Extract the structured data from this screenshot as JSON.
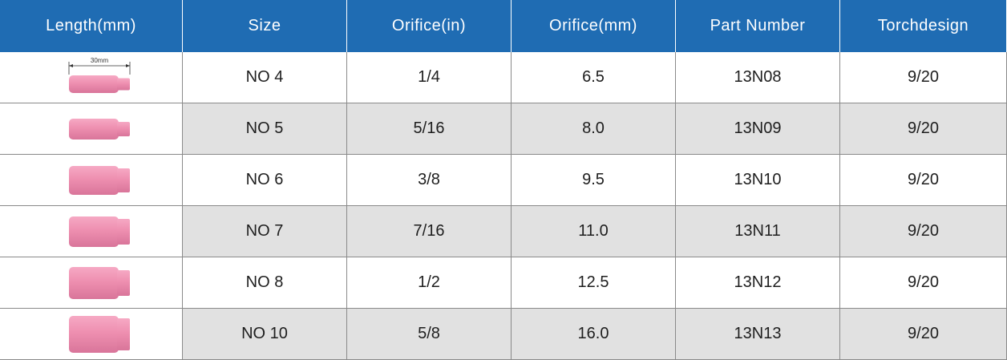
{
  "table": {
    "header": [
      "Length(mm)",
      "Size",
      "Orifice(in)",
      "Orifice(mm)",
      "Part Number",
      "Torchdesign"
    ],
    "dimension_label": "30mm",
    "rows": [
      [
        "NO 4",
        "1/4",
        "6.5",
        "13N08",
        "9/20"
      ],
      [
        "NO 5",
        "5/16",
        "8.0",
        "13N09",
        "9/20"
      ],
      [
        "NO 6",
        "3/8",
        "9.5",
        "13N10",
        "9/20"
      ],
      [
        "NO 7",
        "7/16",
        "11.0",
        "13N11",
        "9/20"
      ],
      [
        "NO 8",
        "1/2",
        "12.5",
        "13N12",
        "9/20"
      ],
      [
        "NO 10",
        "5/8",
        "16.0",
        "13N13",
        "9/20"
      ]
    ]
  }
}
